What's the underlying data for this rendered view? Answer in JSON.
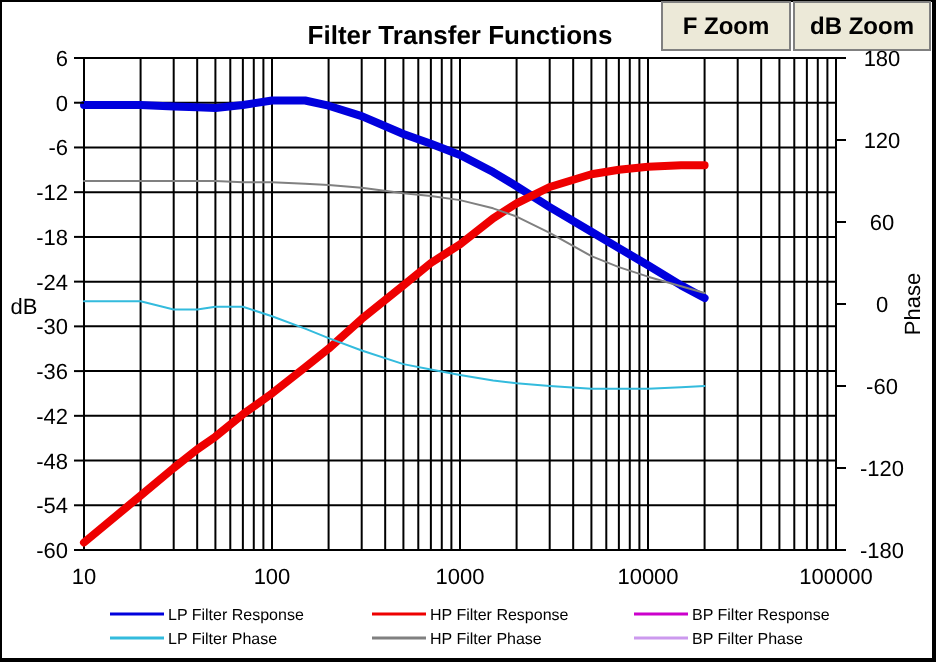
{
  "chart_data": {
    "type": "line",
    "title": "Filter Transfer  Functions",
    "ylabel": "dB",
    "y2label": "Phase",
    "annotations": [
      "F Zoom",
      "dB Zoom"
    ],
    "x": [
      10,
      20,
      30,
      40,
      50,
      70,
      100,
      150,
      200,
      300,
      500,
      700,
      1000,
      1500,
      2000,
      3000,
      5000,
      7000,
      10000,
      15000,
      20000
    ],
    "series": [
      {
        "name": "LP Filter Response",
        "color": "#0000dd",
        "values": [
          -0.3,
          -0.3,
          -0.5,
          -0.6,
          -0.7,
          -0.3,
          0.3,
          0.3,
          -0.4,
          -1.8,
          -4.2,
          -5.5,
          -7,
          -9.3,
          -11.2,
          -14,
          -17.3,
          -19.5,
          -21.8,
          -24.5,
          -26.2
        ]
      },
      {
        "name": "HP Filter Response",
        "color": "#ee0000",
        "values": [
          -59,
          -52.7,
          -49,
          -46.5,
          -44.8,
          -41.8,
          -39,
          -35.5,
          -33,
          -29,
          -24.5,
          -21.5,
          -19,
          -15.5,
          -13.5,
          -11.3,
          -9.6,
          -9,
          -8.6,
          -8.4,
          -8.4
        ]
      },
      {
        "name": "BP Filter Response",
        "color": "#cc00cc",
        "values": [
          null,
          null,
          null,
          null,
          null,
          null,
          null,
          null,
          null,
          null,
          null,
          null,
          null,
          null,
          null,
          null,
          null,
          null,
          null,
          null,
          null
        ]
      },
      {
        "name": "LP Filter Phase",
        "color": "#33bbdd",
        "axis": "y2",
        "values": [
          2,
          2,
          -4,
          -4,
          -2,
          -2,
          -9,
          -18,
          -25,
          -34,
          -44,
          -48,
          -52,
          -56,
          -58,
          -60,
          -62,
          -62,
          -62,
          -61,
          -60
        ]
      },
      {
        "name": "HP Filter Phase",
        "color": "#808080",
        "axis": "y2",
        "values": [
          90,
          90,
          90,
          90,
          90,
          89,
          89,
          88,
          87,
          85,
          81,
          79,
          76,
          70,
          64,
          52,
          35,
          27,
          20,
          13,
          8
        ]
      },
      {
        "name": "BP Filter Phase",
        "color": "#cc99ee",
        "axis": "y2",
        "values": [
          null,
          null,
          null,
          null,
          null,
          null,
          null,
          null,
          null,
          null,
          null,
          null,
          null,
          null,
          null,
          null,
          null,
          null,
          null,
          null,
          null
        ]
      }
    ],
    "log": "x",
    "xlim": [
      10,
      100000
    ],
    "xticks": [
      10,
      {
        "value": 20,
        "label": null
      },
      {
        "value": 30,
        "label": null
      },
      {
        "value": 40,
        "label": null
      },
      {
        "value": 50,
        "label": null
      },
      {
        "value": 60,
        "label": null
      },
      {
        "value": 70,
        "label": null
      },
      {
        "value": 80,
        "label": null
      },
      {
        "value": 90,
        "label": null
      },
      100,
      {
        "value": 200,
        "label": null
      },
      {
        "value": 300,
        "label": null
      },
      {
        "value": 400,
        "label": null
      },
      {
        "value": 500,
        "label": null
      },
      {
        "value": 600,
        "label": null
      },
      {
        "value": 700,
        "label": null
      },
      {
        "value": 800,
        "label": null
      },
      {
        "value": 900,
        "label": null
      },
      1000,
      {
        "value": 2000,
        "label": null
      },
      {
        "value": 3000,
        "label": null
      },
      {
        "value": 4000,
        "label": null
      },
      {
        "value": 5000,
        "label": null
      },
      {
        "value": 6000,
        "label": null
      },
      {
        "value": 7000,
        "label": null
      },
      {
        "value": 8000,
        "label": null
      },
      {
        "value": 9000,
        "label": null
      },
      10000,
      {
        "value": 20000,
        "label": null
      },
      {
        "value": 30000,
        "label": null
      },
      {
        "value": 40000,
        "label": null
      },
      {
        "value": 50000,
        "label": null
      },
      {
        "value": 60000,
        "label": null
      },
      {
        "value": 70000,
        "label": null
      },
      {
        "value": 80000,
        "label": null
      },
      {
        "value": 90000,
        "label": null
      },
      100000
    ],
    "ylim": [
      -60,
      6
    ],
    "yticks": [
      -60,
      -54,
      -48,
      -42,
      -36,
      -30,
      -24,
      -18,
      -12,
      -6,
      0,
      6
    ],
    "y2lim": [
      -180,
      180
    ],
    "y2ticks": [
      -180,
      -120,
      -60,
      0,
      60,
      120,
      180
    ],
    "grid": true,
    "legend": "bottom",
    "marker": "none",
    "line_style": "solid"
  }
}
